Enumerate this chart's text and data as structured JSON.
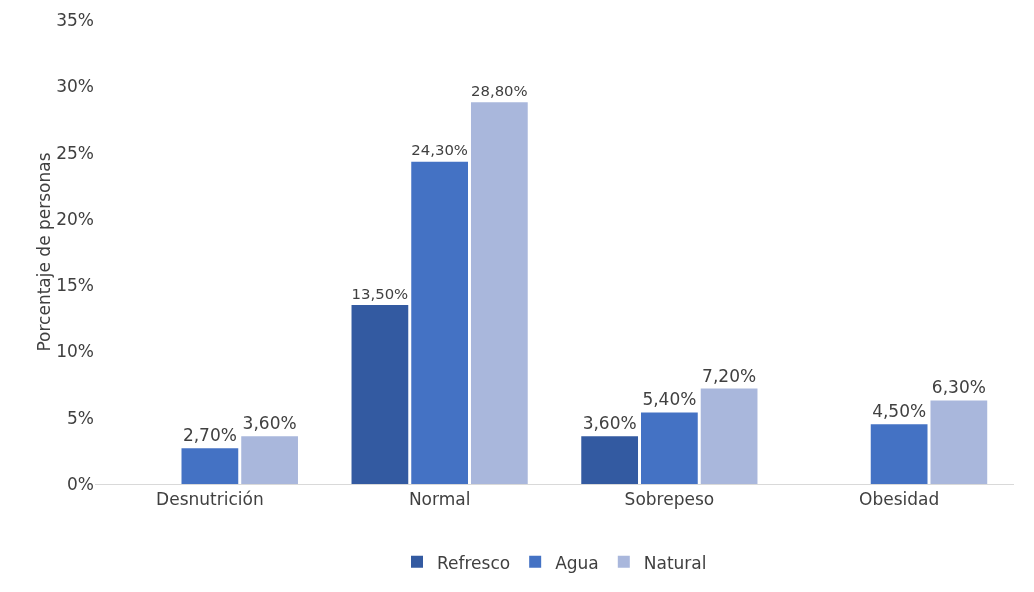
{
  "chart_data": {
    "type": "bar",
    "ylabel": "Porcentaje de personas",
    "categories": [
      "Desnutrición",
      "Normal",
      "Sobrepeso",
      "Obesidad"
    ],
    "series": [
      {
        "name": "Refresco",
        "color": "#335aa1",
        "values": [
          null,
          13.5,
          3.6,
          null
        ],
        "value_labels": [
          null,
          "13,50%",
          "3,60%",
          null
        ]
      },
      {
        "name": "Agua",
        "color": "#4472c4",
        "values": [
          2.7,
          24.3,
          5.4,
          4.5
        ],
        "value_labels": [
          "2,70%",
          "24,30%",
          "5,40%",
          "4,50%"
        ]
      },
      {
        "name": "Natural",
        "color": "#a9b7dc",
        "values": [
          3.6,
          28.8,
          7.2,
          6.3
        ],
        "value_labels": [
          "3,60%",
          "28,80%",
          "7,20%",
          "6,30%"
        ]
      }
    ],
    "ylim": [
      0,
      35
    ],
    "yticks": [
      {
        "value": 0,
        "label": "0%"
      },
      {
        "value": 5,
        "label": "5%"
      },
      {
        "value": 10,
        "label": "10%"
      },
      {
        "value": 15,
        "label": "15%"
      },
      {
        "value": 20,
        "label": "20%"
      },
      {
        "value": 25,
        "label": "25%"
      },
      {
        "value": 30,
        "label": "30%"
      },
      {
        "value": 35,
        "label": "35%"
      }
    ],
    "grid": false,
    "legend": "bottom"
  }
}
